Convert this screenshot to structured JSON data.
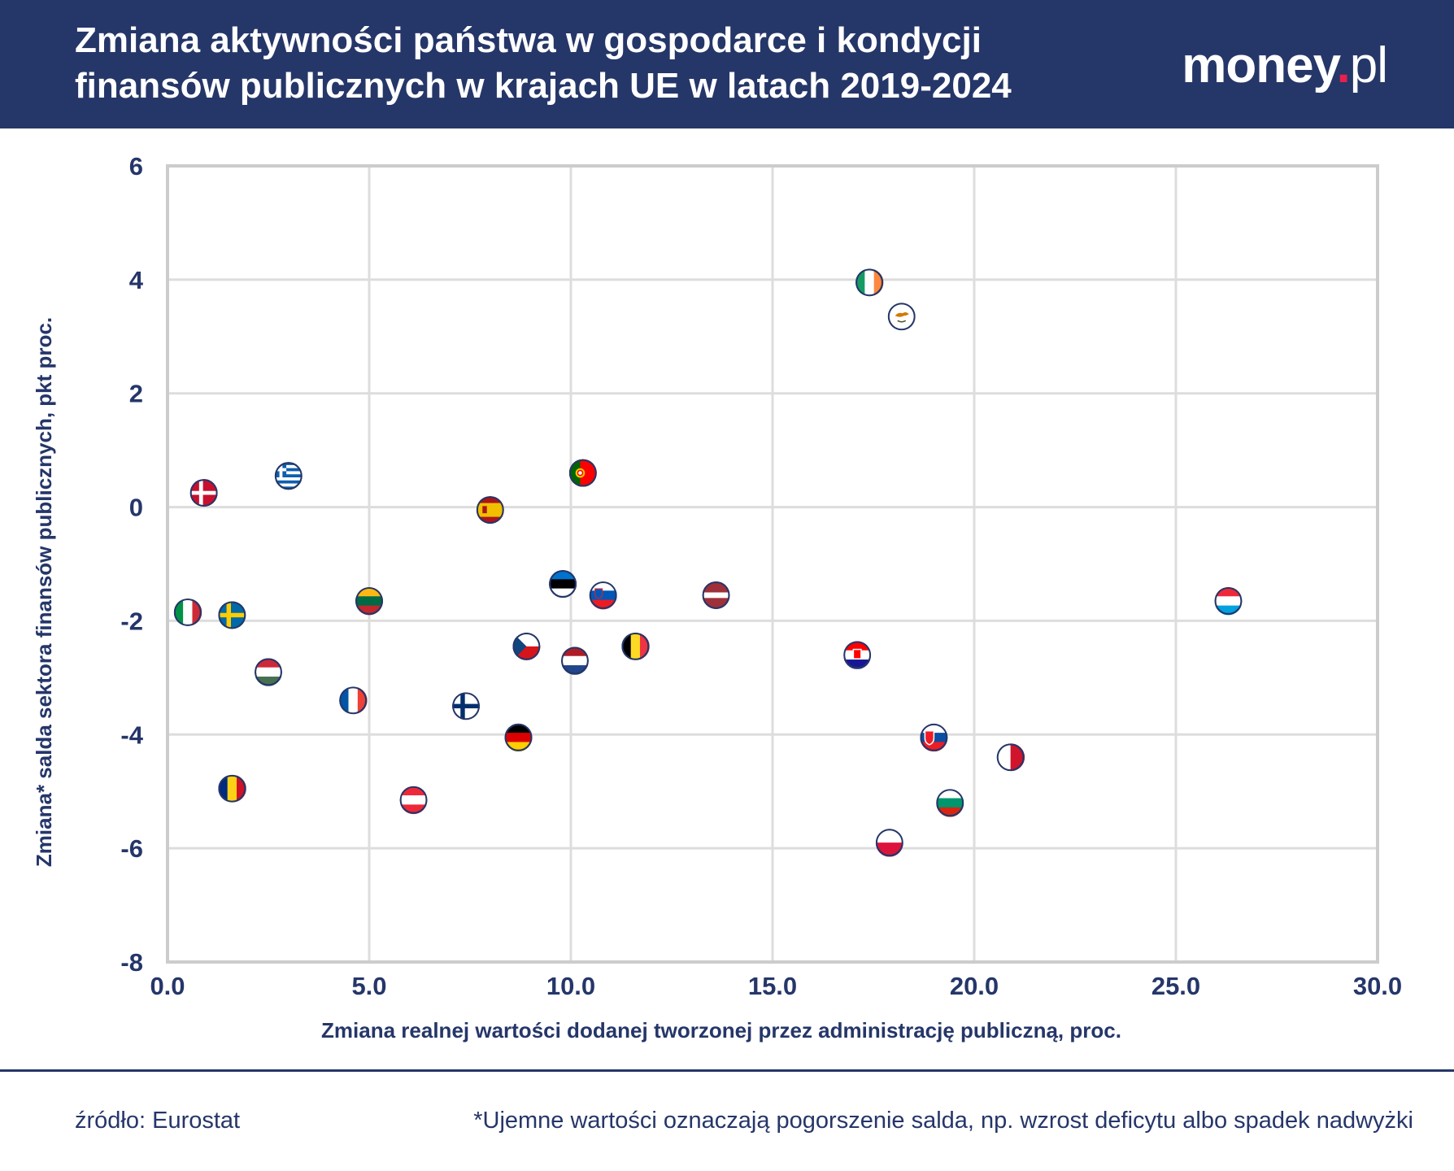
{
  "header": {
    "title_line1": "Zmiana aktywności państwa w gospodarce i kondycji",
    "title_line2": "finansów publicznych w krajach UE w latach 2019-2024",
    "logo_main": "money",
    "logo_dot": ".",
    "logo_tld": "pl"
  },
  "colors": {
    "navy": "#253669",
    "accent": "#e8204d",
    "grid": "#dddddd",
    "frame": "#cccccc"
  },
  "chart_data": {
    "type": "scatter",
    "title": "Zmiana aktywności państwa w gospodarce i kondycji finansów publicznych w krajach UE w latach 2019-2024",
    "xlabel": "Zmiana realnej wartości dodanej tworzonej przez administrację publiczną, proc.",
    "ylabel": "Zmiana* salda sektora finansów publicznych, pkt proc.",
    "xlim": [
      0,
      30
    ],
    "ylim": [
      -8,
      6
    ],
    "xticks": [
      0,
      5,
      10,
      15,
      20,
      25,
      30
    ],
    "xtick_labels": [
      "0.0",
      "5.0",
      "10.0",
      "15.0",
      "20.0",
      "25.0",
      "30.0"
    ],
    "yticks": [
      6,
      4,
      2,
      0,
      -2,
      -4,
      -6,
      -8
    ],
    "ytick_labels": [
      "6",
      "4",
      "2",
      "0",
      "-2",
      "-4",
      "-6",
      "-8"
    ],
    "grid": true,
    "marker": "country flag",
    "points": [
      {
        "country": "DK",
        "x": 0.9,
        "y": 0.25
      },
      {
        "country": "GR",
        "x": 3.0,
        "y": 0.55
      },
      {
        "country": "IT",
        "x": 0.5,
        "y": -1.85
      },
      {
        "country": "SE",
        "x": 1.6,
        "y": -1.9
      },
      {
        "country": "HU",
        "x": 2.5,
        "y": -2.9
      },
      {
        "country": "RO",
        "x": 1.6,
        "y": -4.95
      },
      {
        "country": "LT",
        "x": 5.0,
        "y": -1.65
      },
      {
        "country": "FR",
        "x": 4.6,
        "y": -3.4
      },
      {
        "country": "AT",
        "x": 6.1,
        "y": -5.15
      },
      {
        "country": "FI",
        "x": 7.4,
        "y": -3.5
      },
      {
        "country": "ES",
        "x": 8.0,
        "y": -0.05
      },
      {
        "country": "DE",
        "x": 8.7,
        "y": -4.05
      },
      {
        "country": "CZ",
        "x": 8.9,
        "y": -2.45
      },
      {
        "country": "EE",
        "x": 9.8,
        "y": -1.35
      },
      {
        "country": "NL",
        "x": 10.1,
        "y": -2.7
      },
      {
        "country": "PT",
        "x": 10.3,
        "y": 0.6
      },
      {
        "country": "SI",
        "x": 10.8,
        "y": -1.55
      },
      {
        "country": "BE",
        "x": 11.6,
        "y": -2.45
      },
      {
        "country": "LV",
        "x": 13.6,
        "y": -1.55
      },
      {
        "country": "IE",
        "x": 17.4,
        "y": 3.95
      },
      {
        "country": "CY",
        "x": 18.2,
        "y": 3.35
      },
      {
        "country": "HR",
        "x": 17.1,
        "y": -2.6
      },
      {
        "country": "PL",
        "x": 17.9,
        "y": -5.9
      },
      {
        "country": "SK",
        "x": 19.0,
        "y": -4.05
      },
      {
        "country": "BG",
        "x": 19.4,
        "y": -5.2
      },
      {
        "country": "MT",
        "x": 20.9,
        "y": -4.4
      },
      {
        "country": "LU",
        "x": 26.3,
        "y": -1.65
      }
    ]
  },
  "footer": {
    "source": "źródło: Eurostat",
    "note": "*Ujemne wartości oznaczają pogorszenie salda, np. wzrost deficytu albo spadek nadwyżki"
  }
}
